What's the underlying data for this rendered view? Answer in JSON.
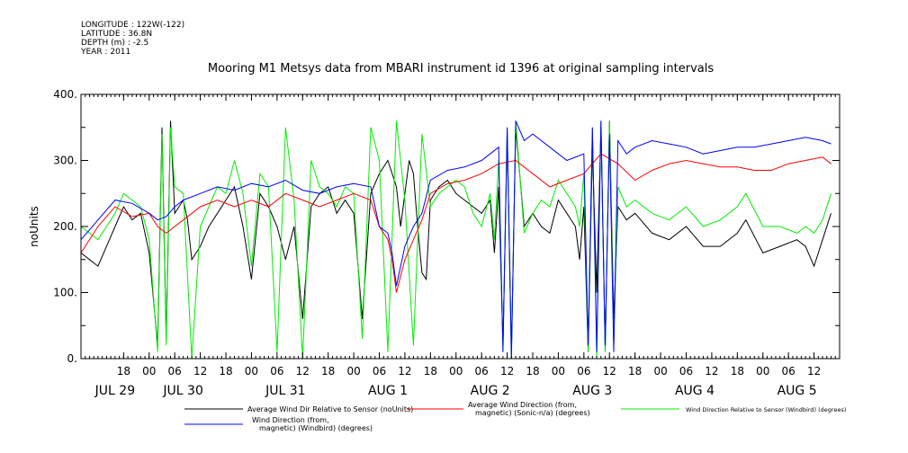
{
  "header": {
    "longitude": "LONGITUDE : 122W(-122)",
    "latitude": "LATITUDE : 36.8N",
    "depth": "DEPTH (m) : -2.5",
    "year": "YEAR : 2011"
  },
  "chart_data": {
    "type": "line",
    "title": "Mooring M1 Metsys data from MBARI instrument id 1396 at original sampling intervals",
    "ylabel": "noUnits",
    "ylim": [
      0,
      400
    ],
    "yticks": [
      "0.",
      "100.",
      "200.",
      "300.",
      "400."
    ],
    "xlim": [
      -10,
      168
    ],
    "hour_ticks": [
      {
        "h": 0,
        "label": "18"
      },
      {
        "h": 6,
        "label": "00"
      },
      {
        "h": 12,
        "label": "06"
      },
      {
        "h": 18,
        "label": "12"
      },
      {
        "h": 24,
        "label": "18"
      },
      {
        "h": 30,
        "label": "00"
      },
      {
        "h": 36,
        "label": "06"
      },
      {
        "h": 42,
        "label": "12"
      },
      {
        "h": 48,
        "label": "18"
      },
      {
        "h": 54,
        "label": "00"
      },
      {
        "h": 60,
        "label": "06"
      },
      {
        "h": 66,
        "label": "12"
      },
      {
        "h": 72,
        "label": "18"
      },
      {
        "h": 78,
        "label": "00"
      },
      {
        "h": 84,
        "label": "06"
      },
      {
        "h": 90,
        "label": "12"
      },
      {
        "h": 96,
        "label": "18"
      },
      {
        "h": 102,
        "label": "00"
      },
      {
        "h": 108,
        "label": "06"
      },
      {
        "h": 114,
        "label": "12"
      },
      {
        "h": 120,
        "label": "18"
      },
      {
        "h": 126,
        "label": "00"
      },
      {
        "h": 132,
        "label": "06"
      },
      {
        "h": 138,
        "label": "12"
      },
      {
        "h": 144,
        "label": "18"
      },
      {
        "h": 150,
        "label": "00"
      },
      {
        "h": 156,
        "label": "06"
      },
      {
        "h": 162,
        "label": "12"
      }
    ],
    "day_labels": [
      {
        "h": -2,
        "label": "JUL 29"
      },
      {
        "h": 14,
        "label": "JUL 30"
      },
      {
        "h": 38,
        "label": "JUL 31"
      },
      {
        "h": 62,
        "label": "AUG  1"
      },
      {
        "h": 86,
        "label": "AUG  2"
      },
      {
        "h": 110,
        "label": "AUG  3"
      },
      {
        "h": 134,
        "label": "AUG  4"
      },
      {
        "h": 158,
        "label": "AUG  5"
      }
    ],
    "series": [
      {
        "name": "Average Wind Dir Relative to Sensor (noUnits)",
        "color": "#000000",
        "x": [
          -10,
          -8,
          -6,
          -4,
          -2,
          0,
          2,
          4,
          6,
          8,
          9,
          10,
          11,
          12,
          13,
          14,
          15,
          16,
          18,
          20,
          22,
          24,
          26,
          28,
          30,
          32,
          34,
          36,
          38,
          40,
          42,
          44,
          46,
          48,
          50,
          52,
          54,
          56,
          58,
          60,
          62,
          64,
          65,
          66,
          67,
          68,
          69,
          70,
          71,
          72,
          74,
          76,
          78,
          80,
          82,
          84,
          86,
          87,
          88,
          89,
          90,
          91,
          92,
          94,
          96,
          98,
          100,
          102,
          104,
          106,
          107,
          108,
          109,
          110,
          111,
          112,
          113,
          114,
          115,
          116,
          118,
          120,
          124,
          128,
          132,
          136,
          140,
          144,
          146,
          150,
          154,
          158,
          160,
          162,
          164,
          166
        ],
        "y": [
          160,
          150,
          140,
          170,
          200,
          230,
          210,
          220,
          160,
          20,
          350,
          30,
          360,
          220,
          230,
          240,
          210,
          150,
          170,
          200,
          220,
          240,
          260,
          200,
          120,
          250,
          230,
          200,
          150,
          200,
          60,
          230,
          250,
          260,
          220,
          240,
          220,
          60,
          250,
          280,
          300,
          260,
          200,
          250,
          300,
          280,
          200,
          130,
          120,
          240,
          260,
          270,
          250,
          240,
          230,
          220,
          240,
          160,
          260,
          20,
          340,
          10,
          350,
          200,
          220,
          200,
          190,
          240,
          220,
          200,
          150,
          230,
          10,
          320,
          100,
          350,
          10,
          360,
          60,
          230,
          210,
          220,
          190,
          180,
          200,
          170,
          170,
          190,
          210,
          160,
          170,
          180,
          170,
          140,
          180,
          220
        ]
      },
      {
        "name": "Average Wind Direction (from, magnetic) (Sonic-n/a) (degrees)",
        "color": "#ff0000",
        "x": [
          -10,
          -6,
          -2,
          2,
          6,
          8,
          10,
          12,
          14,
          18,
          22,
          26,
          30,
          34,
          38,
          42,
          46,
          50,
          54,
          58,
          60,
          62,
          63,
          64,
          66,
          68,
          70,
          72,
          76,
          80,
          84,
          88,
          92,
          96,
          100,
          104,
          108,
          112,
          116,
          120,
          124,
          128,
          132,
          136,
          140,
          144,
          148,
          152,
          156,
          160,
          164,
          166
        ],
        "y": [
          160,
          200,
          230,
          215,
          220,
          200,
          190,
          200,
          210,
          230,
          240,
          230,
          240,
          230,
          250,
          240,
          230,
          240,
          250,
          240,
          200,
          180,
          150,
          100,
          150,
          180,
          210,
          250,
          265,
          270,
          280,
          295,
          300,
          280,
          260,
          270,
          280,
          310,
          295,
          270,
          285,
          295,
          300,
          295,
          290,
          290,
          285,
          285,
          295,
          300,
          305,
          295
        ]
      },
      {
        "name": "Wind Direction Relative to Sensor (Windbird) (degrees)",
        "color": "#00ee00",
        "x": [
          -10,
          -8,
          -6,
          -4,
          -2,
          0,
          2,
          4,
          6,
          8,
          9,
          10,
          11,
          12,
          14,
          16,
          18,
          20,
          22,
          24,
          26,
          28,
          30,
          32,
          34,
          36,
          38,
          40,
          42,
          44,
          46,
          48,
          50,
          52,
          54,
          56,
          58,
          60,
          62,
          64,
          66,
          68,
          70,
          72,
          74,
          76,
          78,
          80,
          82,
          84,
          86,
          87,
          88,
          89,
          90,
          91,
          92,
          94,
          96,
          98,
          100,
          102,
          104,
          106,
          107,
          108,
          109,
          110,
          111,
          112,
          113,
          114,
          115,
          116,
          118,
          120,
          124,
          128,
          132,
          136,
          140,
          144,
          146,
          150,
          154,
          158,
          160,
          162,
          164,
          166
        ],
        "y": [
          200,
          190,
          180,
          200,
          220,
          250,
          240,
          230,
          180,
          10,
          340,
          20,
          350,
          260,
          250,
          0,
          200,
          230,
          260,
          250,
          300,
          250,
          140,
          280,
          260,
          10,
          350,
          240,
          0,
          300,
          260,
          250,
          230,
          260,
          250,
          30,
          350,
          300,
          10,
          360,
          240,
          20,
          340,
          230,
          250,
          260,
          270,
          260,
          220,
          200,
          250,
          180,
          300,
          10,
          350,
          0,
          360,
          190,
          220,
          240,
          230,
          270,
          250,
          230,
          200,
          280,
          10,
          350,
          0,
          360,
          10,
          360,
          20,
          260,
          230,
          240,
          220,
          210,
          230,
          200,
          210,
          230,
          250,
          200,
          200,
          190,
          200,
          190,
          210,
          250
        ]
      },
      {
        "name": "Wind Direction (from, magnetic) (Windbird) (degrees)",
        "color": "#0000ff",
        "x": [
          -10,
          -6,
          -2,
          2,
          6,
          8,
          10,
          12,
          14,
          18,
          22,
          26,
          30,
          34,
          38,
          42,
          46,
          50,
          54,
          58,
          60,
          62,
          63,
          64,
          66,
          68,
          70,
          72,
          76,
          80,
          84,
          88,
          89,
          90,
          91,
          92,
          94,
          96,
          100,
          104,
          108,
          109,
          110,
          111,
          112,
          113,
          114,
          115,
          116,
          118,
          120,
          124,
          128,
          132,
          136,
          140,
          144,
          148,
          152,
          156,
          160,
          164,
          166
        ],
        "y": [
          180,
          210,
          240,
          235,
          220,
          210,
          215,
          230,
          240,
          250,
          260,
          255,
          265,
          260,
          270,
          255,
          250,
          260,
          265,
          260,
          200,
          190,
          160,
          110,
          170,
          200,
          220,
          270,
          285,
          290,
          300,
          320,
          10,
          350,
          0,
          360,
          330,
          340,
          320,
          300,
          310,
          20,
          350,
          10,
          360,
          20,
          340,
          10,
          330,
          310,
          320,
          330,
          325,
          320,
          310,
          315,
          320,
          320,
          325,
          330,
          335,
          330,
          325
        ]
      }
    ]
  }
}
